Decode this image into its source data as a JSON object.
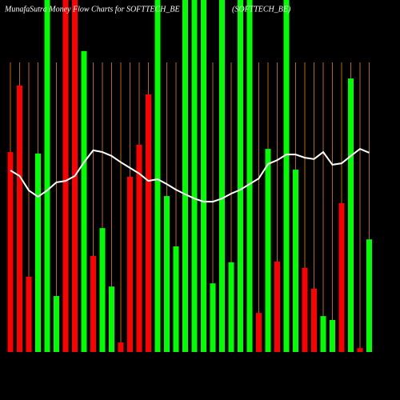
{
  "chart_data": {
    "type": "bar",
    "title": "MunafaSutra  Money Flow  Charts for SOFTTECH_BE",
    "subtitle": "(SOFTTECH_BE)",
    "ylim": [
      0,
      100
    ],
    "values": [
      56.8,
      75.7,
      21.4,
      56.4,
      100,
      15.9,
      100,
      100,
      85.5,
      27.3,
      35.2,
      18.6,
      2.7,
      49.8,
      58.9,
      73.2,
      100,
      44.3,
      30,
      100,
      100,
      100,
      19.5,
      100,
      25.5,
      100,
      100,
      11.1,
      57.7,
      25.7,
      100,
      51.8,
      23.9,
      18,
      10.2,
      9.1,
      42.3,
      77.7,
      1.1,
      32
    ],
    "colors": [
      "#ff0000",
      "#ff0000",
      "#ff0000",
      "#00ff00",
      "#00ff00",
      "#00ff00",
      "#ff0000",
      "#ff0000",
      "#00ff00",
      "#ff0000",
      "#00ff00",
      "#00ff00",
      "#ff0000",
      "#ff0000",
      "#ff0000",
      "#ff0000",
      "#00ff00",
      "#00ff00",
      "#00ff00",
      "#00ff00",
      "#00ff00",
      "#00ff00",
      "#00ff00",
      "#00ff00",
      "#00ff00",
      "#00ff00",
      "#00ff00",
      "#ff0000",
      "#00ff00",
      "#ff0000",
      "#00ff00",
      "#00ff00",
      "#ff0000",
      "#ff0000",
      "#00ff00",
      "#00ff00",
      "#ff0000",
      "#00ff00",
      "#ff0000",
      "#00ff00"
    ],
    "line": {
      "color": "#ffffff",
      "values": [
        51.6,
        50,
        45.9,
        44.1,
        45.9,
        48.2,
        48.6,
        50,
        53.9,
        57.3,
        56.8,
        55.7,
        53.9,
        52.3,
        50.7,
        48.6,
        49.1,
        47.7,
        46.1,
        44.8,
        43.6,
        42.7,
        42.7,
        43.6,
        45,
        46.1,
        47.7,
        49.3,
        53.4,
        54.5,
        56.1,
        56.1,
        55.2,
        54.8,
        56.8,
        53.2,
        53.6,
        55.7,
        57.7,
        56.6
      ]
    }
  }
}
